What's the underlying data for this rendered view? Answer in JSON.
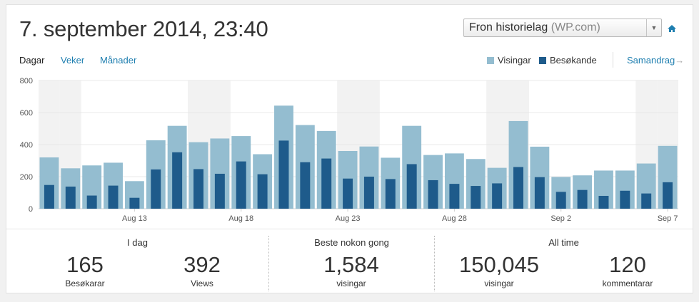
{
  "header": {
    "title": "7. september 2014, 23:40",
    "site_name": "Fron historielag",
    "site_suffix": "(WP.com)"
  },
  "icons": {
    "home": "home-icon",
    "select_arrow": "chevron-down-icon",
    "summary_arrow": "arrow-right-icon"
  },
  "colors": {
    "views": "#94bdd0",
    "visitors": "#1e5b8b",
    "weekend": "#f2f2f2",
    "link": "#1f7fb0"
  },
  "tabs": [
    {
      "label": "Dagar",
      "active": true
    },
    {
      "label": "Veker",
      "active": false
    },
    {
      "label": "Månader",
      "active": false
    }
  ],
  "legend": {
    "views": "Visingar",
    "visitors": "Besøkande"
  },
  "summary_link": "Samandrag",
  "chart_data": {
    "type": "bar",
    "ylim": [
      0,
      800
    ],
    "yticks": [
      0,
      200,
      400,
      600,
      800
    ],
    "categories": [
      "Aug 9",
      "Aug 10",
      "Aug 11",
      "Aug 12",
      "Aug 13",
      "Aug 14",
      "Aug 15",
      "Aug 16",
      "Aug 17",
      "Aug 18",
      "Aug 19",
      "Aug 20",
      "Aug 21",
      "Aug 22",
      "Aug 23",
      "Aug 24",
      "Aug 25",
      "Aug 26",
      "Aug 27",
      "Aug 28",
      "Aug 29",
      "Aug 30",
      "Aug 31",
      "Sep 1",
      "Sep 2",
      "Sep 3",
      "Sep 4",
      "Sep 5",
      "Sep 6",
      "Sep 7"
    ],
    "x_tick_labels": [
      {
        "index": 4,
        "label": "Aug 13"
      },
      {
        "index": 9,
        "label": "Aug 18"
      },
      {
        "index": 14,
        "label": "Aug 23"
      },
      {
        "index": 19,
        "label": "Aug 28"
      },
      {
        "index": 24,
        "label": "Sep 2"
      },
      {
        "index": 29,
        "label": "Sep 7"
      }
    ],
    "weekend_indices": [
      0,
      1,
      7,
      8,
      14,
      15,
      21,
      22,
      28,
      29
    ],
    "series": [
      {
        "name": "Visingar",
        "values": [
          320,
          252,
          270,
          287,
          172,
          427,
          517,
          415,
          438,
          453,
          340,
          643,
          522,
          485,
          360,
          388,
          318,
          517,
          335,
          345,
          310,
          255,
          547,
          387,
          198,
          208,
          238,
          238,
          282,
          392
        ]
      },
      {
        "name": "Besøkande",
        "values": [
          148,
          138,
          82,
          144,
          68,
          245,
          352,
          247,
          218,
          295,
          215,
          425,
          290,
          313,
          188,
          200,
          185,
          278,
          178,
          155,
          142,
          158,
          260,
          197,
          105,
          117,
          80,
          112,
          95,
          165
        ]
      }
    ],
    "grid": true,
    "legend_position": "top-right"
  },
  "stats": {
    "today": {
      "title": "I dag",
      "visitors": {
        "value": "165",
        "label": "Besøkarar"
      },
      "views": {
        "value": "392",
        "label": "Views"
      }
    },
    "best": {
      "title": "Beste nokon gong",
      "views": {
        "value": "1,584",
        "label": "visingar"
      }
    },
    "alltime": {
      "title": "All time",
      "views": {
        "value": "150,045",
        "label": "visingar"
      },
      "comments": {
        "value": "120",
        "label": "kommentarar"
      }
    }
  }
}
